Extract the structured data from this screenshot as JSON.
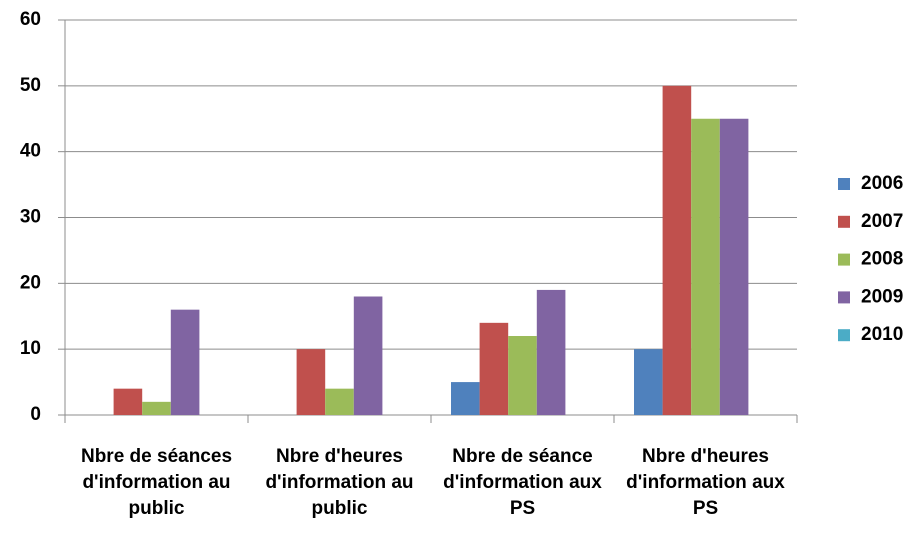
{
  "chart_data": {
    "type": "bar",
    "categories": [
      "Nbre de séances d'information au public",
      "Nbre d'heures d'information au public",
      "Nbre de séance d'information aux PS",
      "Nbre d'heures d'information aux PS"
    ],
    "series": [
      {
        "name": "2006",
        "color": "#4f81bd",
        "values": [
          0,
          0,
          5,
          10
        ]
      },
      {
        "name": "2007",
        "color": "#c0504d",
        "values": [
          4,
          10,
          14,
          50
        ]
      },
      {
        "name": "2008",
        "color": "#9bbb59",
        "values": [
          2,
          4,
          12,
          45
        ]
      },
      {
        "name": "2009",
        "color": "#8064a2",
        "values": [
          16,
          18,
          19,
          45
        ]
      },
      {
        "name": "2010",
        "color": "#4bacc6",
        "values": [
          0,
          0,
          0,
          0
        ]
      }
    ],
    "ylim": [
      0,
      60
    ],
    "yticks": [
      0,
      10,
      20,
      30,
      40,
      50,
      60
    ],
    "grid": true,
    "legend": "right"
  }
}
